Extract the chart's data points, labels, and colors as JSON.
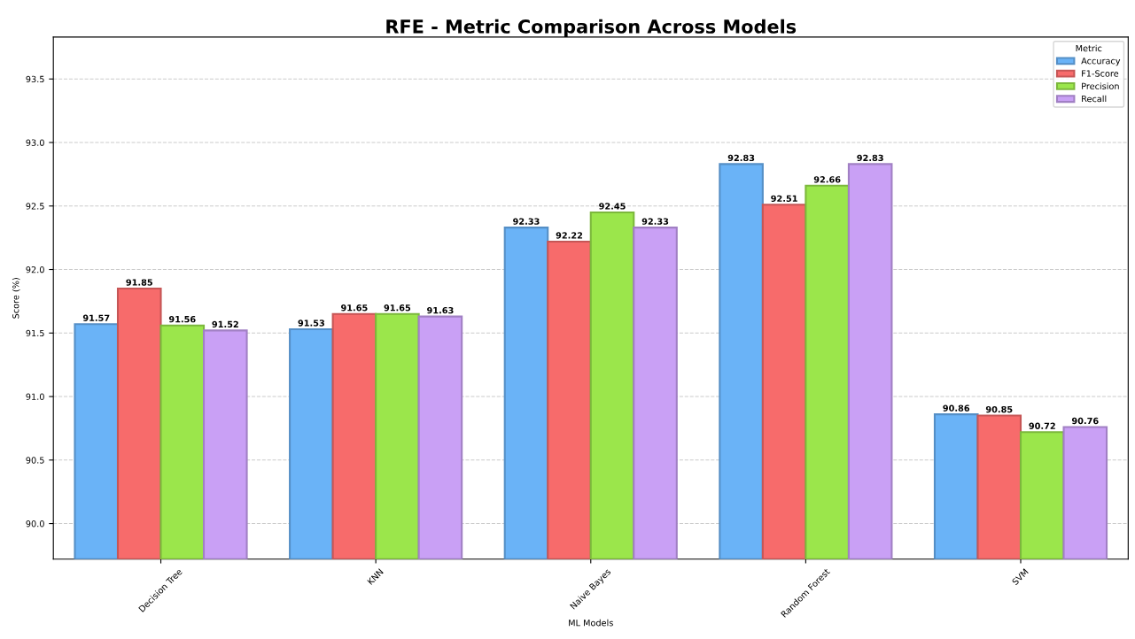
{
  "chart_data": {
    "type": "bar",
    "title": "RFE - Metric Comparison Across Models",
    "xlabel": "ML Models",
    "ylabel": "Score (%)",
    "legend_title": "Metric",
    "categories": [
      "Decision Tree",
      "KNN",
      "Naive Bayes",
      "Random Forest",
      "SVM"
    ],
    "series": [
      {
        "name": "Accuracy",
        "color": "#6ab3f7",
        "values": [
          91.57,
          91.53,
          92.33,
          92.83,
          90.86
        ]
      },
      {
        "name": "F1-Score",
        "color": "#f76b6b",
        "values": [
          91.85,
          91.65,
          92.22,
          92.51,
          90.85
        ]
      },
      {
        "name": "Precision",
        "color": "#9be64b",
        "values": [
          91.56,
          91.65,
          92.45,
          92.66,
          90.72
        ]
      },
      {
        "name": "Recall",
        "color": "#c9a0f5",
        "values": [
          91.52,
          91.63,
          92.33,
          92.83,
          90.76
        ]
      }
    ],
    "ylim": [
      89.72,
      93.83
    ],
    "yticks": [
      {
        "value": 90,
        "label": "90.0"
      },
      90.5,
      {
        "value": 91,
        "label": "91.0"
      },
      91.5,
      {
        "value": 92,
        "label": "92.0"
      },
      92.5,
      {
        "value": 93,
        "label": "93.0"
      },
      93.5
    ],
    "data_labels": true,
    "grid": "y",
    "legend": "top right"
  }
}
